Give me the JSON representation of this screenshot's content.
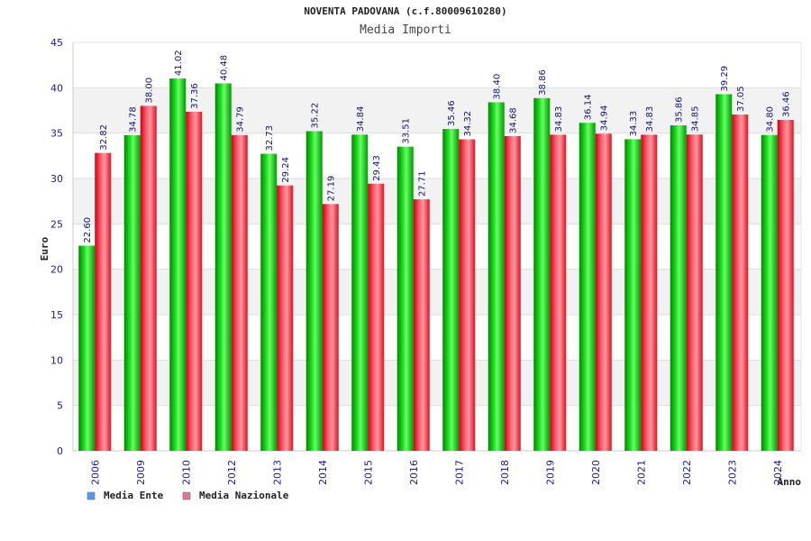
{
  "chart_data": {
    "type": "bar",
    "title": "NOVENTA PADOVANA (c.f.80009610280)",
    "subtitle": "Media Importi",
    "xlabel": "Anno",
    "ylabel": "Euro",
    "ylim": [
      0,
      45
    ],
    "yticks": [
      "0",
      "5",
      "10",
      "15",
      "20",
      "25",
      "30",
      "35",
      "40",
      "45"
    ],
    "grid": true,
    "legend_position": "bottom-left",
    "categories": [
      "2006",
      "2009",
      "2010",
      "2012",
      "2013",
      "2014",
      "2015",
      "2016",
      "2017",
      "2018",
      "2019",
      "2020",
      "2021",
      "2022",
      "2023",
      "2024"
    ],
    "series": [
      {
        "name": "Media Ente",
        "color": "#00cc00",
        "legend_color": "#5599ee",
        "values": [
          22.6,
          34.78,
          41.02,
          40.48,
          32.73,
          35.22,
          34.84,
          33.51,
          35.46,
          38.4,
          38.86,
          36.14,
          34.33,
          35.86,
          39.29,
          34.8
        ],
        "labels": [
          "22.60",
          "34.78",
          "41.02",
          "40.48",
          "32.73",
          "35.22",
          "34.84",
          "33.51",
          "35.46",
          "38.40",
          "38.86",
          "36.14",
          "34.33",
          "35.86",
          "39.29",
          "34.80"
        ]
      },
      {
        "name": "Media Nazionale",
        "color": "#ee2233",
        "legend_color": "#dd7799",
        "values": [
          32.82,
          38.0,
          37.36,
          34.79,
          29.24,
          27.19,
          29.43,
          27.71,
          34.32,
          34.68,
          34.83,
          34.94,
          34.83,
          34.85,
          37.05,
          36.46
        ],
        "labels": [
          "32.82",
          "38.00",
          "37.36",
          "34.79",
          "29.24",
          "27.19",
          "29.43",
          "27.71",
          "34.32",
          "34.68",
          "34.83",
          "34.94",
          "34.83",
          "34.85",
          "37.05",
          "36.46"
        ]
      }
    ]
  }
}
